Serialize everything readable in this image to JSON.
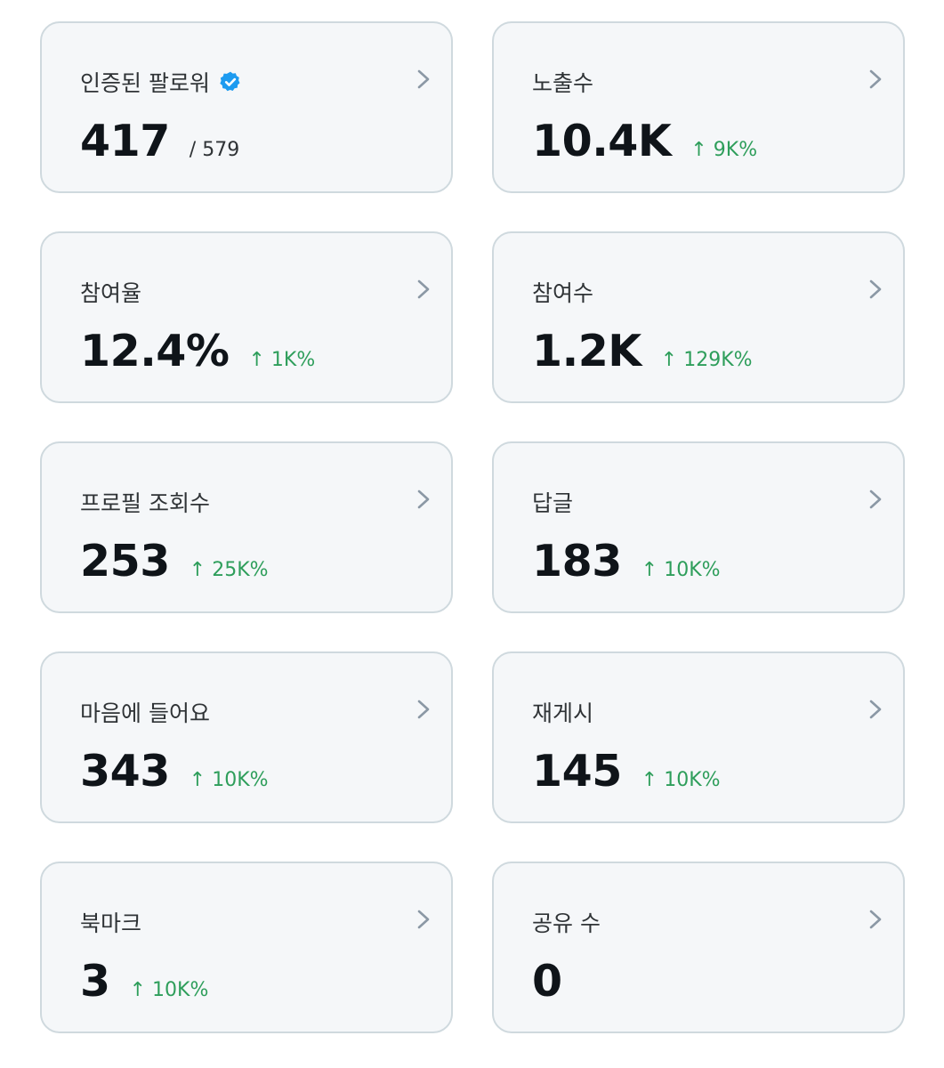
{
  "colors": {
    "card_bg": "#f5f7f9",
    "card_border": "#cfd9de",
    "positive_change": "#2e9e5b",
    "verified_badge": "#1d9bf0",
    "chevron": "#8b98a5"
  },
  "cards": [
    {
      "title": "인증된 팔로워",
      "verified": true,
      "value": "417",
      "sub": "/ 579",
      "change": ""
    },
    {
      "title": "노출수",
      "value": "10.4K",
      "change": "↑ 9K%"
    },
    {
      "title": "참여율",
      "value": "12.4%",
      "change": "↑ 1K%"
    },
    {
      "title": "참여수",
      "value": "1.2K",
      "change": "↑ 129K%"
    },
    {
      "title": "프로필 조회수",
      "value": "253",
      "change": "↑ 25K%"
    },
    {
      "title": "답글",
      "value": "183",
      "change": "↑ 10K%"
    },
    {
      "title": "마음에 들어요",
      "value": "343",
      "change": "↑ 10K%"
    },
    {
      "title": "재게시",
      "value": "145",
      "change": "↑ 10K%"
    },
    {
      "title": "북마크",
      "value": "3",
      "change": "↑ 10K%"
    },
    {
      "title": "공유 수",
      "value": "0",
      "change": ""
    }
  ]
}
